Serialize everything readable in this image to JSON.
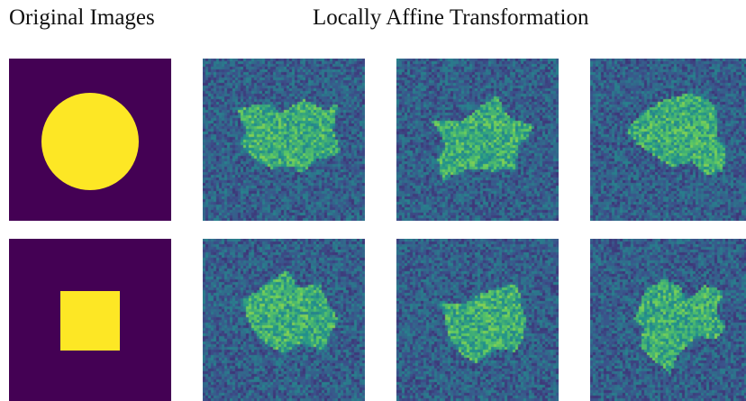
{
  "headers": {
    "left": "Original Images",
    "right": "Locally Affine Transformation"
  },
  "colors": {
    "background_dark": "#440154",
    "shape_yellow": "#fde725",
    "noise_blue_dark": "#3b528b",
    "noise_teal": "#21918c",
    "noise_green": "#5ec962",
    "noise_yellow": "#fde725"
  },
  "rows": [
    {
      "original": {
        "shape": "circle"
      },
      "transforms": [
        {
          "name": "warped-circle-1"
        },
        {
          "name": "warped-circle-2"
        },
        {
          "name": "warped-circle-3"
        }
      ]
    },
    {
      "original": {
        "shape": "square"
      },
      "transforms": [
        {
          "name": "warped-square-1"
        },
        {
          "name": "warped-square-2"
        },
        {
          "name": "warped-square-3"
        }
      ]
    }
  ]
}
